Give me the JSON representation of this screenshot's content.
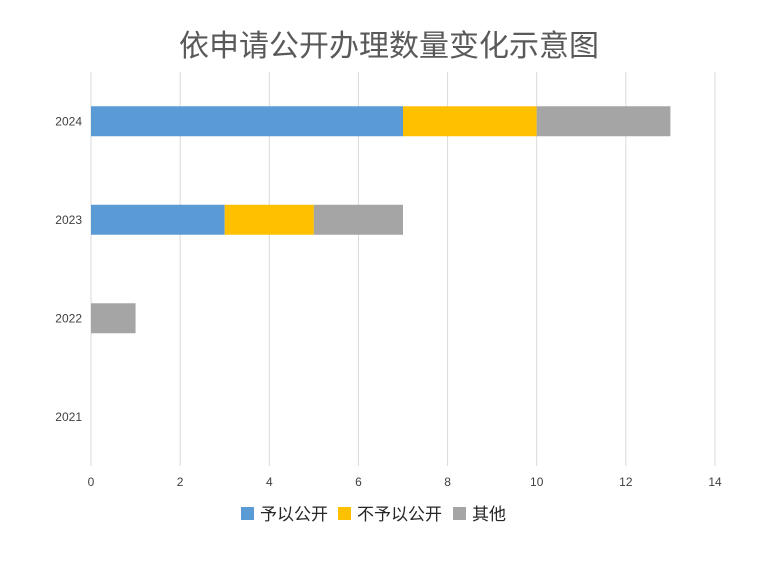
{
  "chart_data": {
    "type": "bar",
    "orientation": "horizontal",
    "stacked": true,
    "title": "依申请公开办理数量变化示意图",
    "xlabel": "",
    "ylabel": "",
    "categories": [
      "2024",
      "2023",
      "2022",
      "2021"
    ],
    "xlim": [
      0,
      14
    ],
    "xticks": [
      0,
      2,
      4,
      6,
      8,
      10,
      12,
      14
    ],
    "grid": true,
    "legend_position": "bottom",
    "series": [
      {
        "name": "予以公开",
        "values": [
          7,
          3,
          0,
          0
        ],
        "color": "#5b9bd5"
      },
      {
        "name": "不予以公开",
        "values": [
          3,
          2,
          0,
          0
        ],
        "color": "#ffc000"
      },
      {
        "name": "其他",
        "values": [
          3,
          2,
          1,
          0
        ],
        "color": "#a5a5a5"
      }
    ]
  }
}
